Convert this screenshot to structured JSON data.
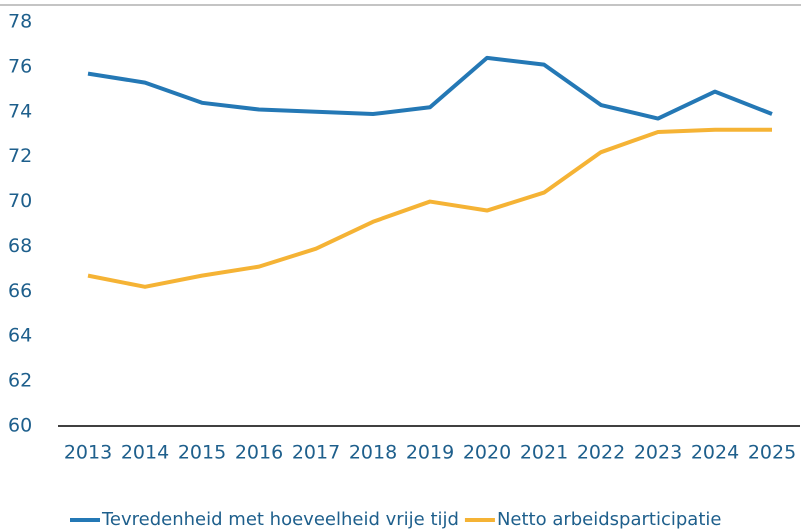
{
  "chart_data": {
    "type": "line",
    "categories": [
      "2013",
      "2014",
      "2015",
      "2016",
      "2017",
      "2018",
      "2019",
      "2020",
      "2021",
      "2022",
      "2023",
      "2024",
      "2025"
    ],
    "series": [
      {
        "name": "Tevredenheid met hoeveelheid vrije tijd",
        "color": "#2478b5",
        "values": [
          75.7,
          75.3,
          74.4,
          74.1,
          74.0,
          73.9,
          74.2,
          76.4,
          76.1,
          74.3,
          73.7,
          74.9,
          73.9
        ]
      },
      {
        "name": "Netto arbeidsparticipatie",
        "color": "#f5b335",
        "values": [
          66.7,
          66.2,
          66.7,
          67.1,
          67.9,
          69.1,
          70.0,
          69.6,
          70.4,
          72.2,
          73.1,
          73.2,
          73.2
        ]
      }
    ],
    "ylim": [
      60,
      78
    ],
    "yticks": [
      60,
      62,
      64,
      66,
      68,
      70,
      72,
      74,
      76,
      78
    ],
    "grid": false,
    "legend": "bottom"
  }
}
